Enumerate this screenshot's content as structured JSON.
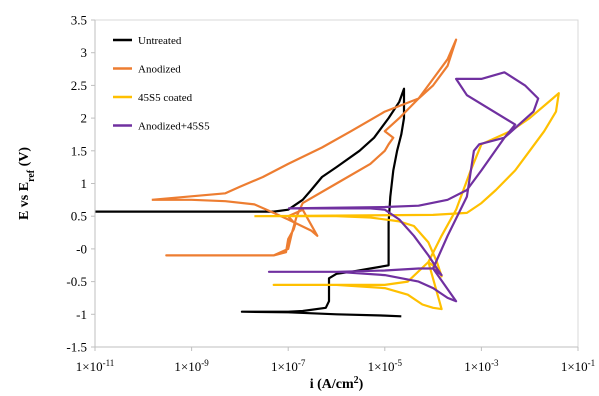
{
  "chart_data": {
    "type": "line",
    "xlabel_main": "i (A/cm",
    "xlabel_sup": "2",
    "xlabel_end": ")",
    "ylabel_main": "E vs E",
    "ylabel_sub": "ref",
    "ylabel_end": " (V)",
    "x_scale": "log",
    "xlim": [
      1e-11,
      0.1
    ],
    "ylim": [
      -1.5,
      3.5
    ],
    "x_ticks": [
      {
        "value": 1e-11,
        "label": "1×10-11"
      },
      {
        "value": 1e-09,
        "label": "1×10-9"
      },
      {
        "value": 1e-07,
        "label": "1×10-7"
      },
      {
        "value": 1e-05,
        "label": "1×10-5"
      },
      {
        "value": 0.001,
        "label": "1×10-3"
      },
      {
        "value": 0.1,
        "label": "1×10-1"
      }
    ],
    "y_ticks": [
      {
        "value": 3.5,
        "label": "3.5"
      },
      {
        "value": 3,
        "label": "3"
      },
      {
        "value": 2.5,
        "label": "2.5"
      },
      {
        "value": 2,
        "label": "2"
      },
      {
        "value": 1.5,
        "label": "1.5"
      },
      {
        "value": 1,
        "label": "1"
      },
      {
        "value": 0.5,
        "label": "0.5"
      },
      {
        "value": 0,
        "label": "-0"
      },
      {
        "value": -0.5,
        "label": "-0.5"
      },
      {
        "value": -1,
        "label": "-1"
      },
      {
        "value": -1.5,
        "label": "-1.5"
      }
    ],
    "grid": false,
    "legend_position": "top-left",
    "series": [
      {
        "name": "Untreated",
        "color": "#000000",
        "points": [
          [
            1e-11,
            0.57
          ],
          [
            1e-09,
            0.57
          ],
          [
            1e-08,
            0.57
          ],
          [
            5e-08,
            0.57
          ],
          [
            1e-07,
            0.6
          ],
          [
            2e-07,
            0.75
          ],
          [
            3e-07,
            0.9
          ],
          [
            5e-07,
            1.1
          ],
          [
            1e-06,
            1.25
          ],
          [
            3e-06,
            1.5
          ],
          [
            6e-06,
            1.7
          ],
          [
            1.2e-05,
            2.0
          ],
          [
            2e-05,
            2.25
          ],
          [
            2.5e-05,
            2.45
          ],
          [
            2.5e-05,
            2.0
          ],
          [
            2.2e-05,
            1.75
          ],
          [
            1.8e-05,
            1.5
          ],
          [
            1.5e-05,
            1.2
          ],
          [
            1.3e-05,
            0.8
          ],
          [
            1.2e-05,
            0.4
          ],
          [
            1.2e-05,
            0.0
          ],
          [
            1.2e-05,
            -0.25
          ],
          [
            5e-06,
            -0.3
          ],
          [
            2e-06,
            -0.35
          ],
          [
            1e-06,
            -0.38
          ],
          [
            7e-07,
            -0.45
          ],
          [
            7e-07,
            -0.6
          ],
          [
            7e-07,
            -0.8
          ],
          [
            6e-07,
            -0.9
          ],
          [
            2e-07,
            -0.95
          ],
          [
            1e-07,
            -0.96
          ],
          [
            1.1e-08,
            -0.96
          ],
          [
            1e-07,
            -0.97
          ],
          [
            1e-06,
            -1.0
          ],
          [
            1e-05,
            -1.02
          ],
          [
            2.2e-05,
            -1.03
          ]
        ]
      },
      {
        "name": "Anodized",
        "color": "#ED7D31",
        "points": [
          [
            1.5e-10,
            0.75
          ],
          [
            1e-09,
            0.75
          ],
          [
            5e-09,
            0.73
          ],
          [
            2e-08,
            0.68
          ],
          [
            5e-08,
            0.55
          ],
          [
            1e-07,
            0.45
          ],
          [
            3e-07,
            0.28
          ],
          [
            4e-07,
            0.2
          ],
          [
            2e-07,
            0.6
          ],
          [
            1e-07,
            0.5
          ],
          [
            1.4e-07,
            0.38
          ],
          [
            1.3e-07,
            0.3
          ],
          [
            1e-07,
            0.15
          ],
          [
            9e-08,
            -0.05
          ],
          [
            5e-08,
            -0.1
          ],
          [
            1e-08,
            -0.1
          ],
          [
            3e-10,
            -0.1
          ],
          [
            1e-08,
            -0.1
          ],
          [
            5e-08,
            -0.1
          ],
          [
            1e-07,
            0.0
          ],
          [
            1.2e-07,
            0.25
          ],
          [
            1.5e-07,
            0.5
          ],
          [
            2e-07,
            0.7
          ],
          [
            1e-06,
            1.0
          ],
          [
            5e-06,
            1.3
          ],
          [
            1e-05,
            1.5
          ],
          [
            1.2e-05,
            1.6
          ],
          [
            1.5e-05,
            1.7
          ],
          [
            1e-05,
            1.8
          ],
          [
            2e-05,
            2.0
          ],
          [
            5e-05,
            2.3
          ],
          [
            0.0001,
            2.6
          ],
          [
            0.0002,
            2.9
          ],
          [
            0.0003,
            3.2
          ],
          [
            0.0002,
            2.8
          ],
          [
            0.0001,
            2.5
          ],
          [
            5e-05,
            2.3
          ],
          [
            1e-05,
            2.1
          ],
          [
            2e-06,
            1.8
          ],
          [
            5e-07,
            1.55
          ],
          [
            1e-07,
            1.3
          ],
          [
            3e-08,
            1.1
          ],
          [
            1e-08,
            0.95
          ],
          [
            5e-09,
            0.85
          ],
          [
            1.5e-10,
            0.75
          ]
        ]
      },
      {
        "name": "45S5 coated",
        "color": "#FFC000",
        "points": [
          [
            2e-08,
            0.5
          ],
          [
            1e-06,
            0.5
          ],
          [
            5e-06,
            0.48
          ],
          [
            2e-05,
            0.42
          ],
          [
            4e-05,
            0.35
          ],
          [
            8e-05,
            0.1
          ],
          [
            0.00012,
            -0.2
          ],
          [
            0.00015,
            -0.42
          ],
          [
            0.00012,
            -0.3
          ],
          [
            8e-05,
            -0.2
          ],
          [
            3e-05,
            -0.5
          ],
          [
            1e-05,
            -0.55
          ],
          [
            1e-06,
            -0.55
          ],
          [
            5e-08,
            -0.55
          ],
          [
            1e-06,
            -0.55
          ],
          [
            1e-05,
            -0.6
          ],
          [
            3e-05,
            -0.7
          ],
          [
            6e-05,
            -0.85
          ],
          [
            0.0001,
            -0.9
          ],
          [
            0.00015,
            -0.92
          ],
          [
            8e-05,
            -0.2
          ],
          [
            0.00015,
            0.2
          ],
          [
            0.0003,
            0.6
          ],
          [
            0.0006,
            1.2
          ],
          [
            0.001,
            1.6
          ],
          [
            0.002,
            1.7
          ],
          [
            0.004,
            1.8
          ],
          [
            0.01,
            2.0
          ],
          [
            0.03,
            2.3
          ],
          [
            0.04,
            2.38
          ],
          [
            0.035,
            2.1
          ],
          [
            0.02,
            1.8
          ],
          [
            0.01,
            1.5
          ],
          [
            0.005,
            1.2
          ],
          [
            0.002,
            0.9
          ],
          [
            0.001,
            0.7
          ],
          [
            0.0005,
            0.55
          ],
          [
            0.0001,
            0.52
          ],
          [
            2e-08,
            0.5
          ]
        ]
      },
      {
        "name": "Anodized+45S5",
        "color": "#7030A0",
        "points": [
          [
            1e-07,
            0.62
          ],
          [
            1e-06,
            0.62
          ],
          [
            5e-06,
            0.62
          ],
          [
            1e-05,
            0.6
          ],
          [
            2e-05,
            0.45
          ],
          [
            4e-05,
            0.2
          ],
          [
            8e-05,
            -0.1
          ],
          [
            0.00012,
            -0.3
          ],
          [
            0.00015,
            -0.4
          ],
          [
            0.0001,
            -0.3
          ],
          [
            5e-05,
            -0.3
          ],
          [
            1e-05,
            -0.33
          ],
          [
            1e-06,
            -0.35
          ],
          [
            4e-08,
            -0.35
          ],
          [
            1e-06,
            -0.35
          ],
          [
            1e-05,
            -0.4
          ],
          [
            5e-05,
            -0.5
          ],
          [
            0.0001,
            -0.6
          ],
          [
            0.0002,
            -0.75
          ],
          [
            0.0003,
            -0.8
          ],
          [
            0.0001,
            -0.3
          ],
          [
            0.0002,
            0.2
          ],
          [
            0.0005,
            0.8
          ],
          [
            0.0007,
            1.5
          ],
          [
            0.0009,
            1.6
          ],
          [
            0.003,
            1.7
          ],
          [
            0.005,
            1.9
          ],
          [
            0.0005,
            2.35
          ],
          [
            0.0003,
            2.6
          ],
          [
            0.001,
            2.6
          ],
          [
            0.003,
            2.7
          ],
          [
            0.008,
            2.5
          ],
          [
            0.015,
            2.3
          ],
          [
            0.012,
            2.1
          ],
          [
            0.006,
            1.9
          ],
          [
            0.003,
            1.7
          ],
          [
            0.001,
            1.2
          ],
          [
            0.0005,
            0.9
          ],
          [
            0.0002,
            0.75
          ],
          [
            5e-05,
            0.66
          ],
          [
            1e-05,
            0.64
          ],
          [
            1e-07,
            0.62
          ]
        ]
      }
    ]
  }
}
